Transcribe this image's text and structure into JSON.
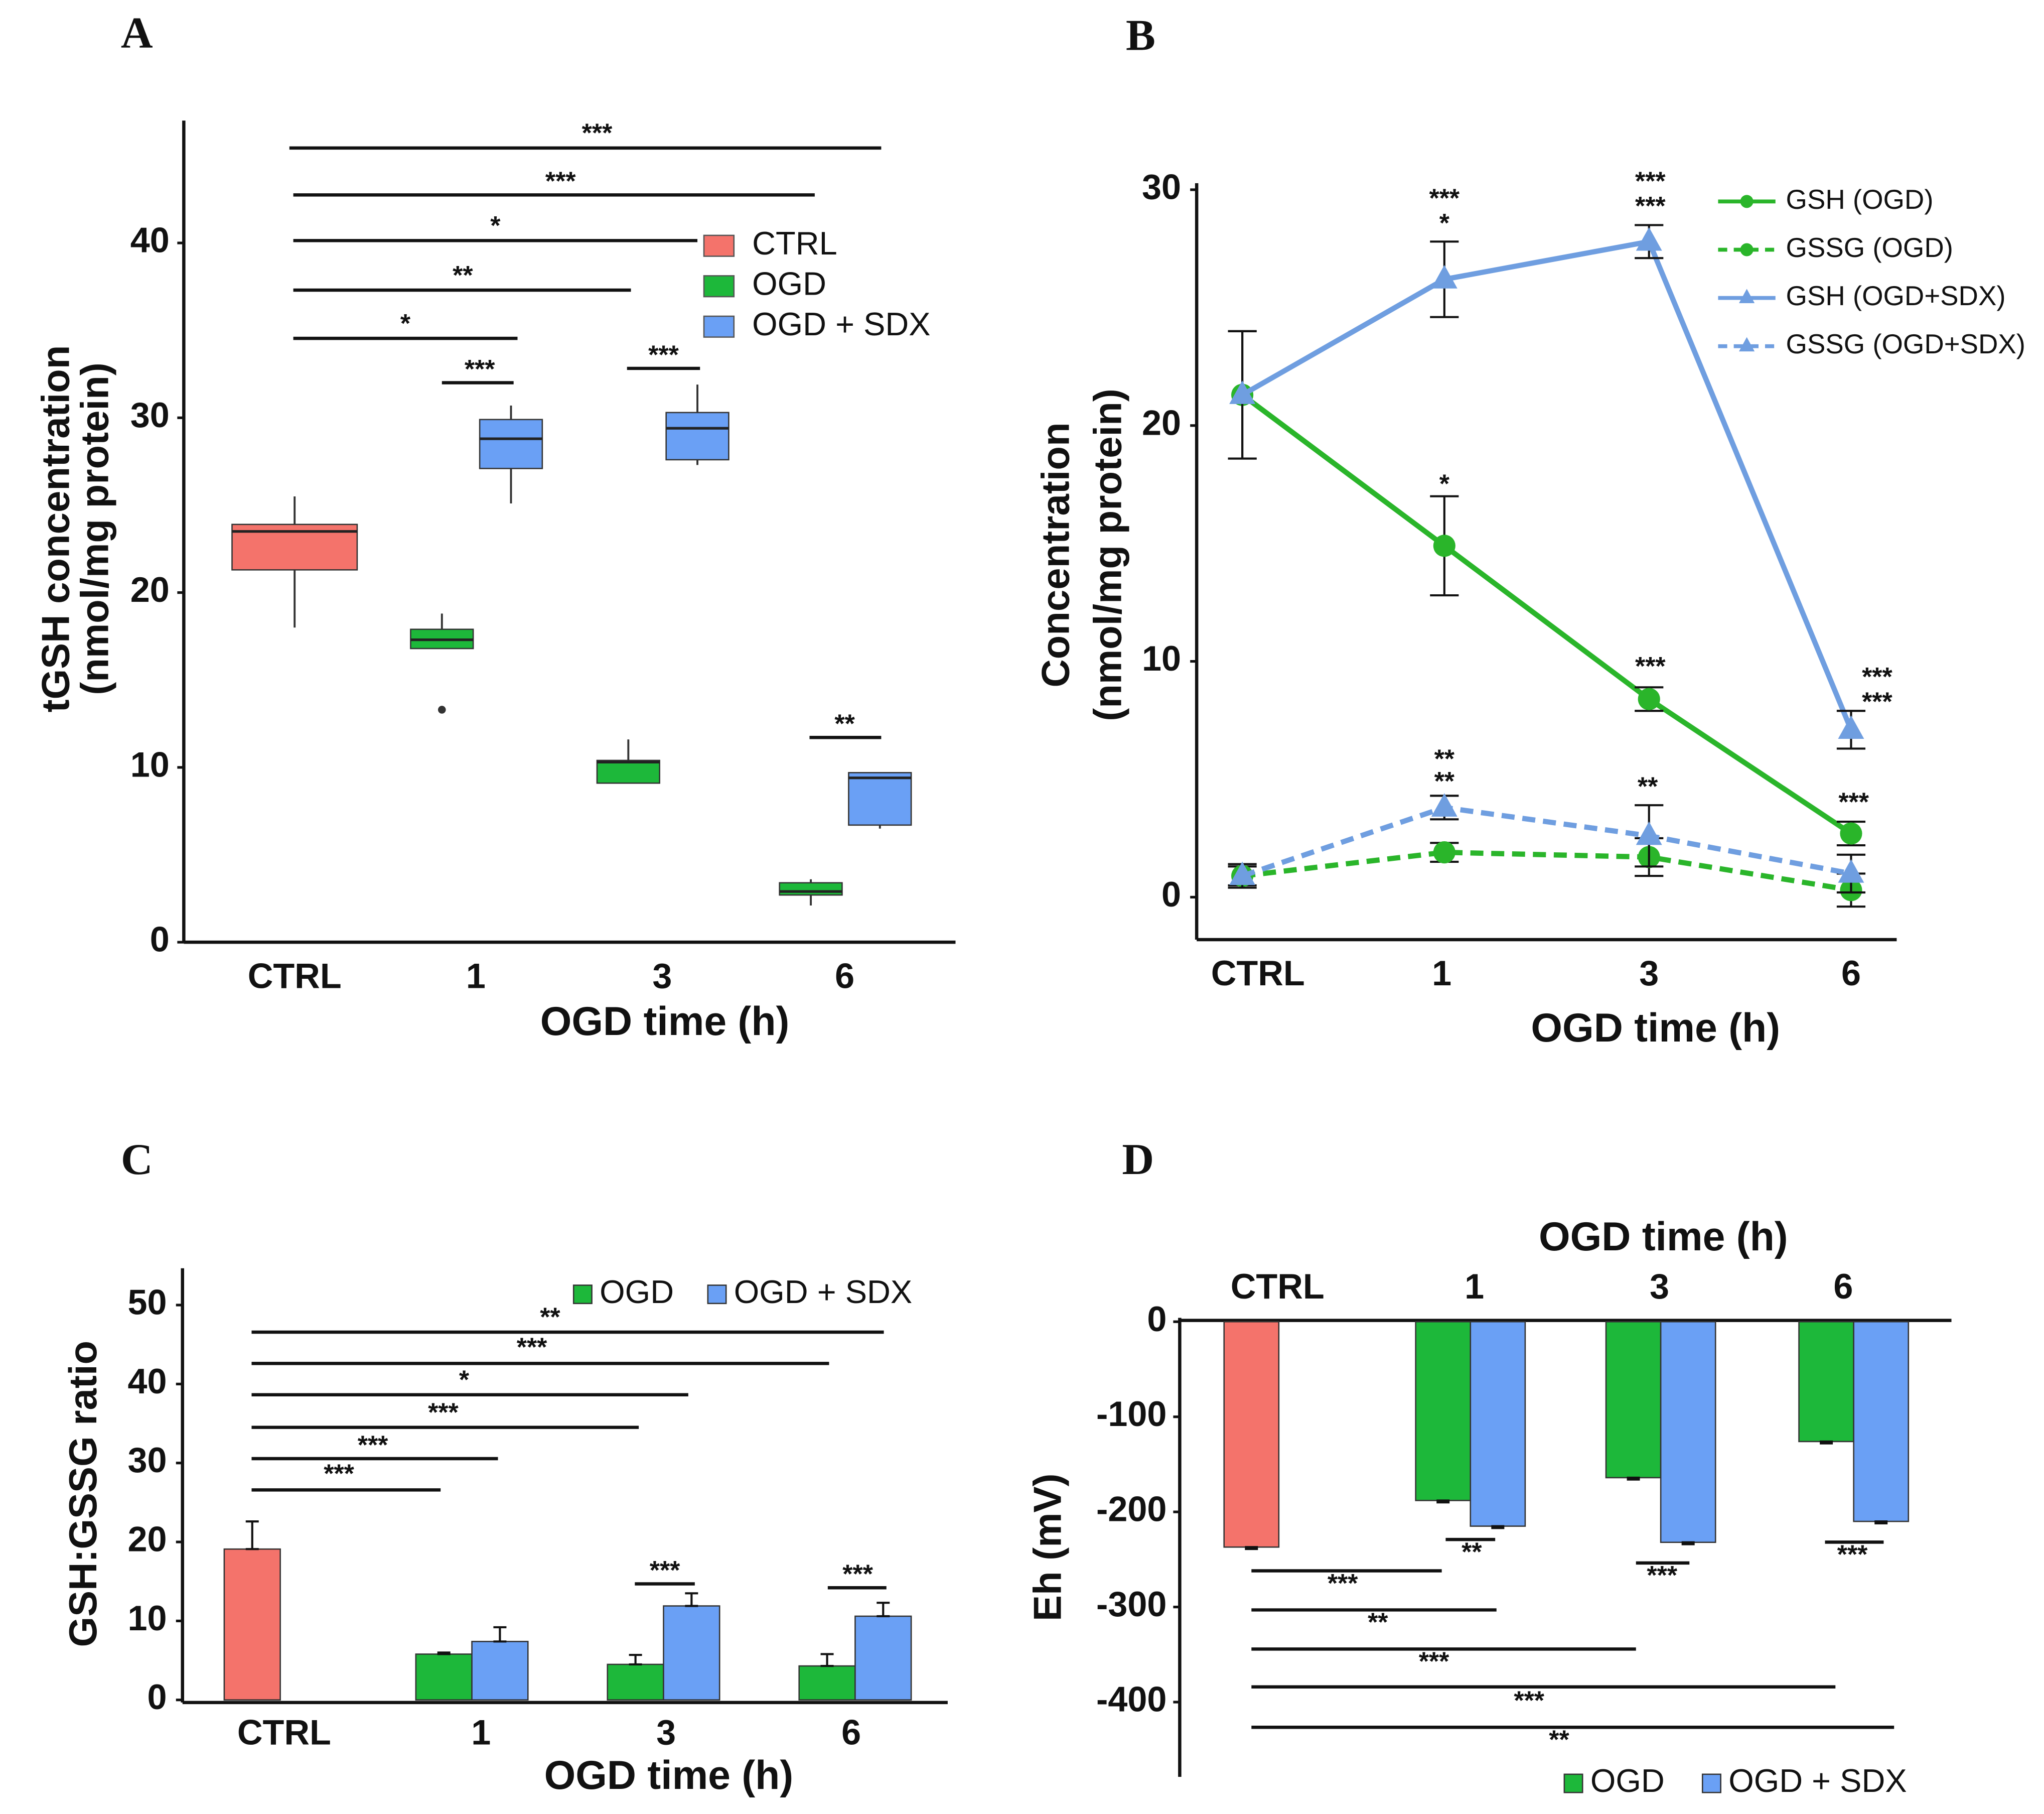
{
  "chart_data": [
    {
      "type": "box",
      "panel": "A",
      "xlabel": "OGD time (h)",
      "ylabel": [
        "tGSH concentration",
        "(nmol/mg protein)"
      ],
      "categories": [
        "CTRL",
        "1",
        "3",
        "6"
      ],
      "ylim": [
        0,
        47
      ],
      "yticks": [
        0,
        10,
        20,
        30,
        40
      ],
      "series": [
        {
          "name": "CTRL",
          "color": "#f4736b",
          "boxes": [
            {
              "min": 18.0,
              "q1": 21.3,
              "median": 23.5,
              "q3": 23.9,
              "max": 25.5
            },
            null,
            null,
            null
          ],
          "outliers": [
            [],
            [],
            [],
            []
          ]
        },
        {
          "name": "OGD",
          "color": "#1db83a",
          "boxes": [
            null,
            {
              "min": 16.8,
              "q1": 16.8,
              "median": 17.3,
              "q3": 17.9,
              "max": 18.8
            },
            {
              "min": 9.1,
              "q1": 9.1,
              "median": 10.3,
              "q3": 10.4,
              "max": 11.6
            },
            {
              "min": 2.1,
              "q1": 2.7,
              "median": 2.9,
              "q3": 3.4,
              "max": 3.6
            }
          ],
          "outliers": [
            [],
            [
              13.3
            ],
            [],
            []
          ]
        },
        {
          "name": "OGD + SDX",
          "color": "#6aa0f5",
          "boxes": [
            null,
            {
              "min": 25.1,
              "q1": 27.1,
              "median": 28.8,
              "q3": 29.9,
              "max": 30.7
            },
            {
              "min": 27.3,
              "q1": 27.6,
              "median": 29.4,
              "q3": 30.3,
              "max": 31.9
            },
            {
              "min": 6.5,
              "q1": 6.7,
              "median": 9.4,
              "q3": 9.7,
              "max": 9.7
            }
          ],
          "outliers": [
            [],
            [],
            [],
            []
          ]
        }
      ],
      "annotations": [
        "***",
        "***",
        "*",
        "**",
        "*",
        "***",
        "***",
        "**"
      ]
    },
    {
      "type": "line",
      "panel": "B",
      "xlabel": "OGD time (h)",
      "ylabel": [
        "Concentration",
        "(nmol/mg protein)"
      ],
      "categories": [
        "CTRL",
        "1",
        "3",
        "6"
      ],
      "ylim": [
        -1.8,
        30
      ],
      "yticks": [
        0,
        10,
        20,
        30
      ],
      "series": [
        {
          "name": "GSH (OGD)",
          "color": "#2ab52a",
          "dashed": false,
          "marker": "circle",
          "values": [
            21.3,
            14.9,
            8.4,
            2.7
          ],
          "errors": [
            2.7,
            2.1,
            0.5,
            0.5
          ]
        },
        {
          "name": "GSSG (OGD)",
          "color": "#2ab52a",
          "dashed": true,
          "marker": "circle",
          "values": [
            0.9,
            1.9,
            1.7,
            0.3
          ],
          "errors": [
            0.4,
            0.4,
            0.8,
            0.7
          ]
        },
        {
          "name": "GSH (OGD+SDX)",
          "color": "#6f9ee0",
          "dashed": false,
          "marker": "triangle",
          "values": [
            21.3,
            26.2,
            27.8,
            7.1
          ],
          "errors": [
            2.7,
            1.6,
            0.7,
            0.8
          ]
        },
        {
          "name": "GSSG (OGD+SDX)",
          "color": "#6f9ee0",
          "dashed": true,
          "marker": "triangle",
          "values": [
            0.9,
            3.8,
            2.6,
            1.0
          ],
          "errors": [
            0.5,
            0.5,
            1.3,
            0.8
          ]
        }
      ],
      "annotations": [
        {
          "text": "***",
          "color": "#e0474c"
        },
        {
          "text": "*",
          "color": "#222222"
        },
        {
          "text": "***",
          "color": "#e0474c"
        },
        {
          "text": "***",
          "color": "#222222"
        },
        {
          "text": "***",
          "color": "#e0474c"
        },
        {
          "text": "***",
          "color": "#222222"
        },
        {
          "text": "*",
          "color": "#222222"
        },
        {
          "text": "***",
          "color": "#222222"
        },
        {
          "text": "***",
          "color": "#222222"
        },
        {
          "text": "**",
          "color": "#e0474c"
        },
        {
          "text": "**",
          "color": "#222222"
        },
        {
          "text": "**",
          "color": "#222222"
        }
      ]
    },
    {
      "type": "bar",
      "panel": "C",
      "ylabel": [
        "GSH:GSSG ratio"
      ],
      "xlabel": "OGD time (h)",
      "categories": [
        "CTRL",
        "1",
        "3",
        "6"
      ],
      "ylim": [
        0,
        54
      ],
      "yticks": [
        0,
        10,
        20,
        30,
        40,
        50
      ],
      "control": {
        "color": "#f4736b",
        "value": 19.1,
        "error": 3.5
      },
      "series": [
        {
          "name": "OGD",
          "color": "#1db83a",
          "values": [
            null,
            5.8,
            4.5,
            4.3
          ],
          "errors": [
            null,
            0.2,
            1.2,
            1.5
          ]
        },
        {
          "name": "OGD + SDX",
          "color": "#6aa0f5",
          "values": [
            null,
            7.4,
            11.9,
            10.6
          ],
          "errors": [
            null,
            1.8,
            1.6,
            1.7
          ]
        }
      ],
      "annotations": [
        "**",
        "***",
        "*",
        "***",
        "***",
        "***",
        "***",
        "***"
      ]
    },
    {
      "type": "bar",
      "panel": "D",
      "ylabel": [
        "Eh (mV)"
      ],
      "xlabel": "OGD time (h)",
      "categories": [
        "CTRL",
        "1",
        "3",
        "6"
      ],
      "ylim": [
        -480,
        0
      ],
      "yticks": [
        0,
        -100,
        -200,
        -300,
        -400
      ],
      "control": {
        "color": "#f4736b",
        "value": -237,
        "error": 2
      },
      "series": [
        {
          "name": "OGD",
          "color": "#1db83a",
          "values": [
            null,
            -188,
            -164,
            -126
          ],
          "errors": [
            null,
            2,
            2,
            2
          ]
        },
        {
          "name": "OGD + SDX",
          "color": "#6aa0f5",
          "values": [
            null,
            -215,
            -232,
            -210
          ],
          "errors": [
            null,
            2,
            2,
            2
          ]
        }
      ],
      "annotations": [
        "**",
        "***",
        "***",
        "***",
        "**",
        "***",
        "***",
        "**"
      ]
    }
  ]
}
